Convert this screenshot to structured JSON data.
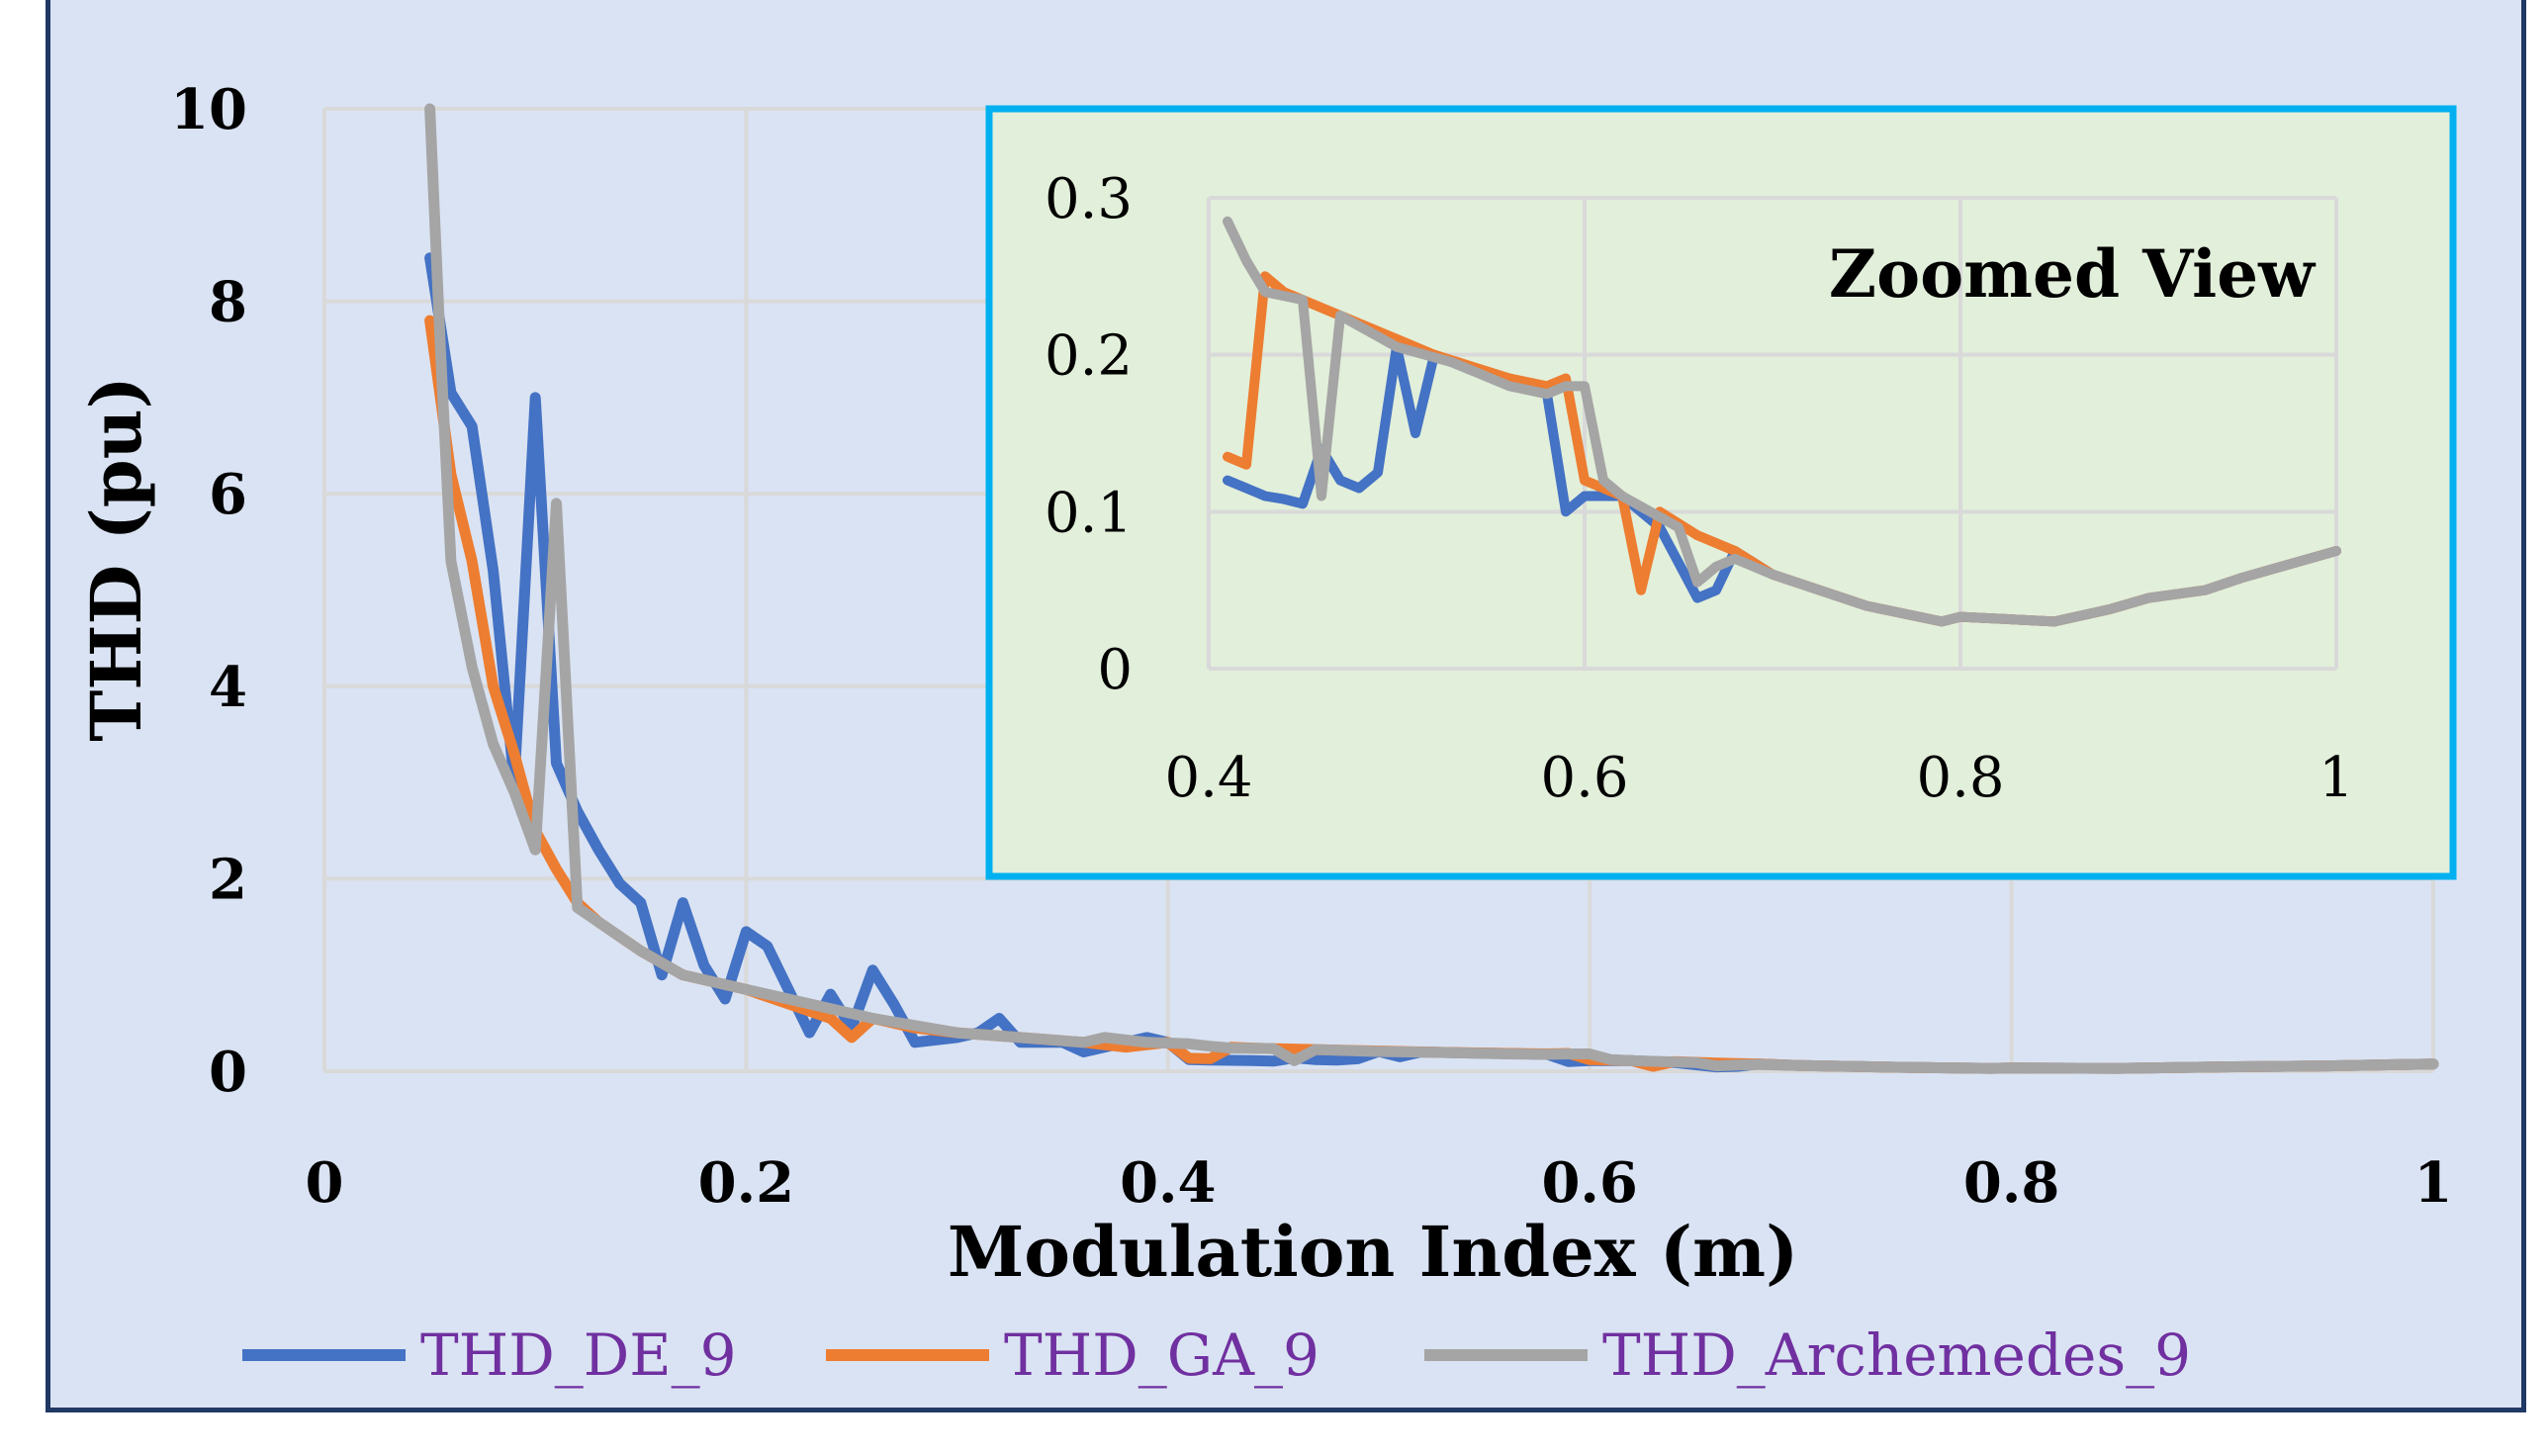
{
  "chart_data": [
    {
      "type": "line",
      "title": "",
      "xlabel": "Modulation Index (m)",
      "ylabel": "THD (pu)",
      "xlim": [
        0,
        1
      ],
      "ylim": [
        0,
        10
      ],
      "xticks": [
        "0",
        "0.2",
        "0.4",
        "0.6",
        "0.8",
        "1"
      ],
      "yticks": [
        "0",
        "2",
        "4",
        "6",
        "8",
        "10"
      ],
      "grid": true,
      "legend": "bottom",
      "series": [
        {
          "name": "THD_DE_9",
          "color": "#4472c4",
          "points": [
            [
              0.05,
              8.45
            ],
            [
              0.06,
              7.05
            ],
            [
              0.07,
              6.7
            ],
            [
              0.08,
              5.2
            ],
            [
              0.09,
              3.0
            ],
            [
              0.1,
              7.0
            ],
            [
              0.11,
              3.2
            ],
            [
              0.12,
              2.7
            ],
            [
              0.13,
              2.3
            ],
            [
              0.14,
              1.95
            ],
            [
              0.15,
              1.75
            ],
            [
              0.16,
              1.0
            ],
            [
              0.17,
              1.75
            ],
            [
              0.18,
              1.1
            ],
            [
              0.19,
              0.75
            ],
            [
              0.2,
              1.45
            ],
            [
              0.21,
              1.3
            ],
            [
              0.22,
              0.85
            ],
            [
              0.23,
              0.4
            ],
            [
              0.24,
              0.8
            ],
            [
              0.25,
              0.45
            ],
            [
              0.26,
              1.05
            ],
            [
              0.27,
              0.7
            ],
            [
              0.28,
              0.3
            ],
            [
              0.3,
              0.35
            ],
            [
              0.31,
              0.4
            ],
            [
              0.32,
              0.55
            ],
            [
              0.33,
              0.3
            ],
            [
              0.35,
              0.3
            ],
            [
              0.36,
              0.2
            ],
            [
              0.38,
              0.3
            ],
            [
              0.39,
              0.35
            ],
            [
              0.4,
              0.3
            ],
            [
              0.41,
              0.12
            ],
            [
              0.42,
              0.115
            ],
            [
              0.44,
              0.11
            ],
            [
              0.45,
              0.105
            ],
            [
              0.46,
              0.14
            ],
            [
              0.47,
              0.12
            ],
            [
              0.48,
              0.115
            ],
            [
              0.49,
              0.13
            ],
            [
              0.5,
              0.205
            ],
            [
              0.51,
              0.15
            ],
            [
              0.52,
              0.2
            ],
            [
              0.54,
              0.19
            ],
            [
              0.56,
              0.185
            ],
            [
              0.58,
              0.175
            ],
            [
              0.59,
              0.1
            ],
            [
              0.6,
              0.11
            ],
            [
              0.62,
              0.11
            ],
            [
              0.64,
              0.09
            ],
            [
              0.66,
              0.045
            ],
            [
              0.67,
              0.05
            ],
            [
              0.68,
              0.075
            ],
            [
              0.7,
              0.06
            ],
            [
              0.75,
              0.04
            ],
            [
              0.79,
              0.03
            ],
            [
              0.8,
              0.033
            ],
            [
              0.85,
              0.03
            ],
            [
              0.9,
              0.045
            ],
            [
              0.95,
              0.055
            ],
            [
              1.0,
              0.075
            ]
          ]
        },
        {
          "name": "THD_GA_9",
          "color": "#ed7d31",
          "points": [
            [
              0.05,
              7.8
            ],
            [
              0.06,
              6.2
            ],
            [
              0.07,
              5.3
            ],
            [
              0.08,
              4.0
            ],
            [
              0.09,
              3.3
            ],
            [
              0.1,
              2.5
            ],
            [
              0.11,
              2.1
            ],
            [
              0.12,
              1.75
            ],
            [
              0.13,
              1.55
            ],
            [
              0.15,
              1.25
            ],
            [
              0.17,
              1.0
            ],
            [
              0.2,
              0.85
            ],
            [
              0.22,
              0.7
            ],
            [
              0.24,
              0.55
            ],
            [
              0.25,
              0.35
            ],
            [
              0.26,
              0.55
            ],
            [
              0.28,
              0.45
            ],
            [
              0.3,
              0.4
            ],
            [
              0.33,
              0.35
            ],
            [
              0.36,
              0.3
            ],
            [
              0.38,
              0.25
            ],
            [
              0.4,
              0.3
            ],
            [
              0.41,
              0.135
            ],
            [
              0.42,
              0.13
            ],
            [
              0.43,
              0.25
            ],
            [
              0.44,
              0.24
            ],
            [
              0.46,
              0.23
            ],
            [
              0.5,
              0.21
            ],
            [
              0.52,
              0.2
            ],
            [
              0.56,
              0.185
            ],
            [
              0.58,
              0.18
            ],
            [
              0.59,
              0.185
            ],
            [
              0.6,
              0.12
            ],
            [
              0.62,
              0.11
            ],
            [
              0.63,
              0.05
            ],
            [
              0.64,
              0.1
            ],
            [
              0.66,
              0.085
            ],
            [
              0.68,
              0.075
            ],
            [
              0.7,
              0.06
            ],
            [
              0.75,
              0.04
            ],
            [
              0.79,
              0.03
            ],
            [
              0.8,
              0.033
            ],
            [
              0.85,
              0.03
            ],
            [
              0.9,
              0.045
            ],
            [
              0.95,
              0.055
            ],
            [
              1.0,
              0.075
            ]
          ]
        },
        {
          "name": "THD_Archemedes_9",
          "color": "#a5a5a5",
          "points": [
            [
              0.05,
              10.0
            ],
            [
              0.055,
              7.5
            ],
            [
              0.06,
              5.3
            ],
            [
              0.07,
              4.2
            ],
            [
              0.08,
              3.4
            ],
            [
              0.09,
              2.9
            ],
            [
              0.1,
              2.3
            ],
            [
              0.11,
              5.9
            ],
            [
              0.12,
              1.7
            ],
            [
              0.13,
              1.55
            ],
            [
              0.15,
              1.25
            ],
            [
              0.17,
              1.0
            ],
            [
              0.2,
              0.85
            ],
            [
              0.23,
              0.7
            ],
            [
              0.26,
              0.55
            ],
            [
              0.3,
              0.4
            ],
            [
              0.33,
              0.35
            ],
            [
              0.36,
              0.3
            ],
            [
              0.37,
              0.35
            ],
            [
              0.39,
              0.3
            ],
            [
              0.41,
              0.285
            ],
            [
              0.42,
              0.26
            ],
            [
              0.43,
              0.24
            ],
            [
              0.45,
              0.235
            ],
            [
              0.46,
              0.11
            ],
            [
              0.47,
              0.225
            ],
            [
              0.5,
              0.205
            ],
            [
              0.53,
              0.195
            ],
            [
              0.56,
              0.18
            ],
            [
              0.58,
              0.175
            ],
            [
              0.59,
              0.18
            ],
            [
              0.6,
              0.18
            ],
            [
              0.61,
              0.12
            ],
            [
              0.62,
              0.11
            ],
            [
              0.65,
              0.09
            ],
            [
              0.66,
              0.055
            ],
            [
              0.67,
              0.065
            ],
            [
              0.68,
              0.07
            ],
            [
              0.7,
              0.06
            ],
            [
              0.75,
              0.04
            ],
            [
              0.79,
              0.03
            ],
            [
              0.8,
              0.033
            ],
            [
              0.85,
              0.03
            ],
            [
              0.9,
              0.045
            ],
            [
              0.95,
              0.055
            ],
            [
              1.0,
              0.075
            ]
          ]
        }
      ]
    },
    {
      "type": "line",
      "title": "Zoomed View",
      "xlabel": "",
      "ylabel": "",
      "xlim": [
        0.4,
        1
      ],
      "ylim": [
        0,
        0.3
      ],
      "xticks": [
        "0.4",
        "0.6",
        "0.8",
        "1"
      ],
      "yticks": [
        "0",
        "0.1",
        "0.2",
        "0.3"
      ],
      "grid": true,
      "series": [
        {
          "name": "THD_DE_9",
          "color": "#4472c4",
          "points": [
            [
              0.41,
              0.12
            ],
            [
              0.42,
              0.115
            ],
            [
              0.43,
              0.11
            ],
            [
              0.44,
              0.108
            ],
            [
              0.45,
              0.105
            ],
            [
              0.46,
              0.14
            ],
            [
              0.47,
              0.12
            ],
            [
              0.48,
              0.115
            ],
            [
              0.49,
              0.125
            ],
            [
              0.5,
              0.205
            ],
            [
              0.51,
              0.15
            ],
            [
              0.52,
              0.2
            ],
            [
              0.54,
              0.19
            ],
            [
              0.56,
              0.185
            ],
            [
              0.58,
              0.175
            ],
            [
              0.59,
              0.1
            ],
            [
              0.6,
              0.11
            ],
            [
              0.62,
              0.11
            ],
            [
              0.64,
              0.09
            ],
            [
              0.66,
              0.045
            ],
            [
              0.67,
              0.05
            ],
            [
              0.68,
              0.075
            ],
            [
              0.7,
              0.06
            ],
            [
              0.75,
              0.04
            ],
            [
              0.79,
              0.03
            ],
            [
              0.8,
              0.033
            ],
            [
              0.85,
              0.03
            ],
            [
              0.88,
              0.038
            ],
            [
              0.9,
              0.045
            ],
            [
              0.93,
              0.05
            ],
            [
              0.95,
              0.058
            ],
            [
              1.0,
              0.075
            ]
          ]
        },
        {
          "name": "THD_GA_9",
          "color": "#ed7d31",
          "points": [
            [
              0.41,
              0.135
            ],
            [
              0.42,
              0.13
            ],
            [
              0.43,
              0.25
            ],
            [
              0.44,
              0.24
            ],
            [
              0.46,
              0.23
            ],
            [
              0.5,
              0.21
            ],
            [
              0.52,
              0.2
            ],
            [
              0.56,
              0.185
            ],
            [
              0.58,
              0.18
            ],
            [
              0.59,
              0.185
            ],
            [
              0.6,
              0.12
            ],
            [
              0.62,
              0.11
            ],
            [
              0.63,
              0.05
            ],
            [
              0.64,
              0.1
            ],
            [
              0.66,
              0.085
            ],
            [
              0.68,
              0.075
            ],
            [
              0.7,
              0.06
            ],
            [
              0.75,
              0.04
            ],
            [
              0.79,
              0.03
            ],
            [
              0.8,
              0.033
            ],
            [
              0.85,
              0.03
            ],
            [
              0.88,
              0.038
            ],
            [
              0.9,
              0.045
            ],
            [
              0.93,
              0.05
            ],
            [
              0.95,
              0.058
            ],
            [
              1.0,
              0.075
            ]
          ]
        },
        {
          "name": "THD_Archemedes_9",
          "color": "#a5a5a5",
          "points": [
            [
              0.41,
              0.285
            ],
            [
              0.42,
              0.26
            ],
            [
              0.43,
              0.24
            ],
            [
              0.45,
              0.235
            ],
            [
              0.46,
              0.11
            ],
            [
              0.47,
              0.225
            ],
            [
              0.5,
              0.205
            ],
            [
              0.53,
              0.195
            ],
            [
              0.56,
              0.18
            ],
            [
              0.58,
              0.175
            ],
            [
              0.59,
              0.18
            ],
            [
              0.6,
              0.18
            ],
            [
              0.61,
              0.12
            ],
            [
              0.62,
              0.11
            ],
            [
              0.65,
              0.09
            ],
            [
              0.66,
              0.055
            ],
            [
              0.67,
              0.065
            ],
            [
              0.68,
              0.07
            ],
            [
              0.7,
              0.06
            ],
            [
              0.75,
              0.04
            ],
            [
              0.79,
              0.03
            ],
            [
              0.8,
              0.033
            ],
            [
              0.85,
              0.03
            ],
            [
              0.88,
              0.038
            ],
            [
              0.9,
              0.045
            ],
            [
              0.93,
              0.05
            ],
            [
              0.95,
              0.058
            ],
            [
              1.0,
              0.075
            ]
          ]
        }
      ]
    }
  ],
  "colors": {
    "background": "#dae3f3",
    "frame": "#203864",
    "inset_background": "#e2efda",
    "inset_border": "#00b0f0",
    "grid": "#d9d9d9",
    "legend_text": "#7030a0"
  }
}
